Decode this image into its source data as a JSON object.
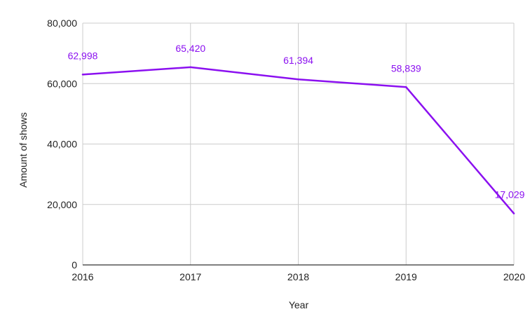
{
  "chart_data": {
    "type": "line",
    "title": "",
    "xlabel": "Year",
    "ylabel": "Amount of shows",
    "x": [
      "2016",
      "2017",
      "2018",
      "2019",
      "2020"
    ],
    "series": [
      {
        "values": [
          62998,
          65420,
          61394,
          58839,
          17029
        ],
        "data_labels": [
          "62,998",
          "65,420",
          "61,394",
          "58,839",
          "17,029"
        ]
      }
    ],
    "ylim": [
      0,
      80000
    ],
    "yticks": [
      0,
      20000,
      40000,
      60000,
      80000
    ],
    "ytick_labels": [
      "0",
      "20,000",
      "40,000",
      "60,000",
      "80,000"
    ],
    "grid": true,
    "legend": "none",
    "colors": {
      "series": "#8b10f0",
      "grid": "#cccccc",
      "axis": "#333333",
      "text": "#222222"
    }
  }
}
